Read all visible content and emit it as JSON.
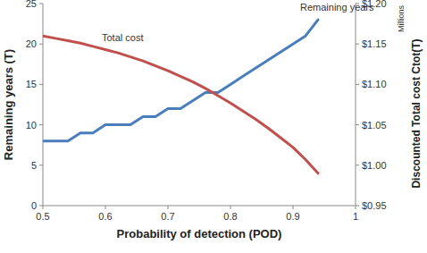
{
  "chart_data": {
    "type": "line",
    "xlabel": "Probability of detection (POD)",
    "ylabel": "Remaining years (T)",
    "y2label": "Discounted Total cost Ctot(T)",
    "annotations": [
      "Millions"
    ],
    "x": [
      0.5,
      0.52,
      0.54,
      0.56,
      0.58,
      0.6,
      0.62,
      0.64,
      0.66,
      0.68,
      0.7,
      0.72,
      0.74,
      0.76,
      0.78,
      0.8,
      0.82,
      0.84,
      0.86,
      0.88,
      0.9,
      0.92,
      0.94
    ],
    "xlim": [
      0.5,
      1
    ],
    "xticks": [
      0.5,
      0.6,
      0.7,
      0.8,
      0.9,
      1
    ],
    "ylim": [
      0,
      25
    ],
    "yticks": [
      0,
      5,
      10,
      15,
      20,
      25
    ],
    "y2lim": [
      0.95,
      1.2
    ],
    "y2ticks": [
      {
        "value": 0.95,
        "label": "$0.95"
      },
      {
        "value": 1.0,
        "label": "$1.00"
      },
      {
        "value": 1.05,
        "label": "$1.05"
      },
      {
        "value": 1.1,
        "label": "$1.10"
      },
      {
        "value": 1.15,
        "label": "$1.15"
      },
      {
        "value": 1.2,
        "label": "$1.20"
      }
    ],
    "grid": false,
    "series": [
      {
        "name": "Remaining years",
        "color": "#4a7ebb",
        "values": [
          8,
          8,
          8,
          9,
          9,
          10,
          10,
          10,
          11,
          11,
          12,
          12,
          13,
          14,
          14,
          15,
          16,
          17,
          18,
          19,
          20,
          21,
          23
        ]
      },
      {
        "name": "Total cost",
        "color": "#c0504d",
        "axis": "y2",
        "values": [
          1.16,
          1.157,
          1.154,
          1.151,
          1.147,
          1.143,
          1.139,
          1.134,
          1.129,
          1.123,
          1.117,
          1.11,
          1.103,
          1.095,
          1.086,
          1.077,
          1.067,
          1.057,
          1.046,
          1.034,
          1.022,
          1.007,
          0.99
        ]
      }
    ]
  }
}
